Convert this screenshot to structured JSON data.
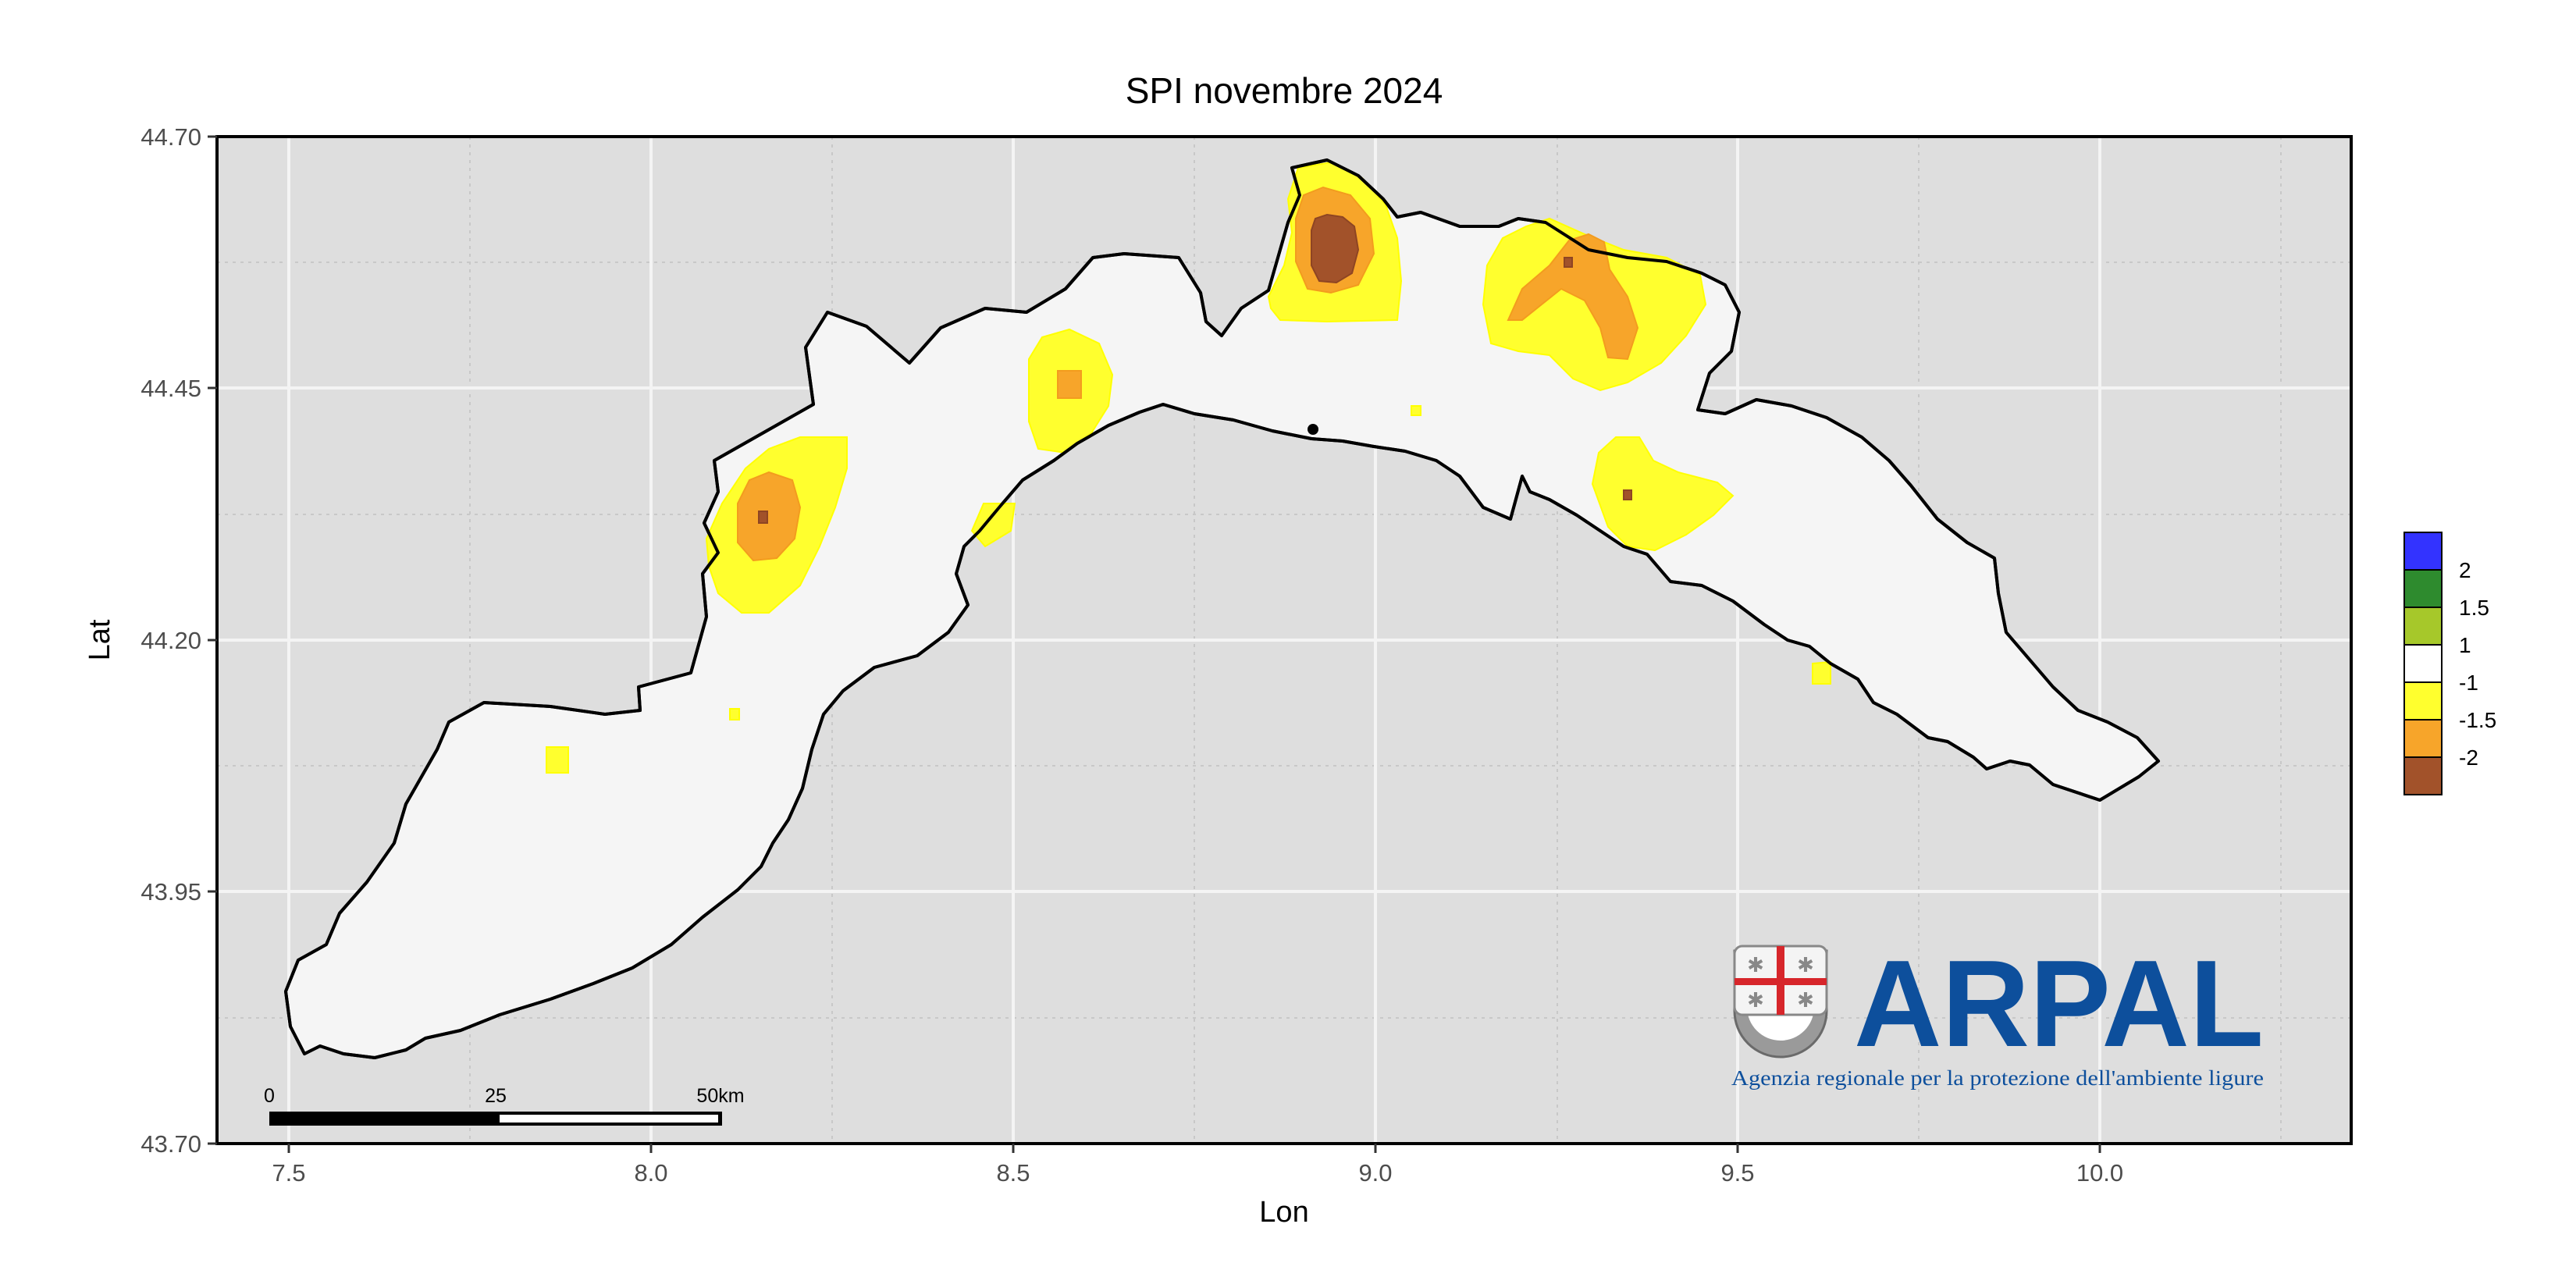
{
  "title": "SPI novembre 2024",
  "axes": {
    "x_label": "Lon",
    "y_label": "Lat",
    "x_ticks": [
      "7.5",
      "8.0",
      "8.5",
      "9.0",
      "9.5",
      "10.0"
    ],
    "y_ticks": [
      "44.70",
      "44.45",
      "44.20",
      "43.95",
      "43.70"
    ]
  },
  "legend": {
    "items": [
      {
        "label": "2",
        "color": "#3333ff"
      },
      {
        "label": "1.5",
        "color": "#2e8b2e"
      },
      {
        "label": "1",
        "color": "#a6c82a"
      },
      {
        "label": "-1",
        "color": "#ffffff"
      },
      {
        "label": "-1.5",
        "color": "#ffff2e"
      },
      {
        "label": "-2",
        "color": "#f7a52a"
      },
      {
        "label": "",
        "color": "#a2522a"
      }
    ]
  },
  "scale_bar": {
    "labels": [
      "0",
      "25",
      "50km"
    ]
  },
  "logo": {
    "name": "ARPAL",
    "subtitle": "Agenzia regionale per la protezione dell'ambiente ligure"
  },
  "colors": {
    "panel_bg": "#dedede",
    "land": "#f5f5f5",
    "spi_minus_1": "#ffff2e",
    "spi_minus_1_5": "#f7a52a",
    "spi_minus_2": "#a2522a",
    "logo_blue": "#0d4f9c"
  }
}
